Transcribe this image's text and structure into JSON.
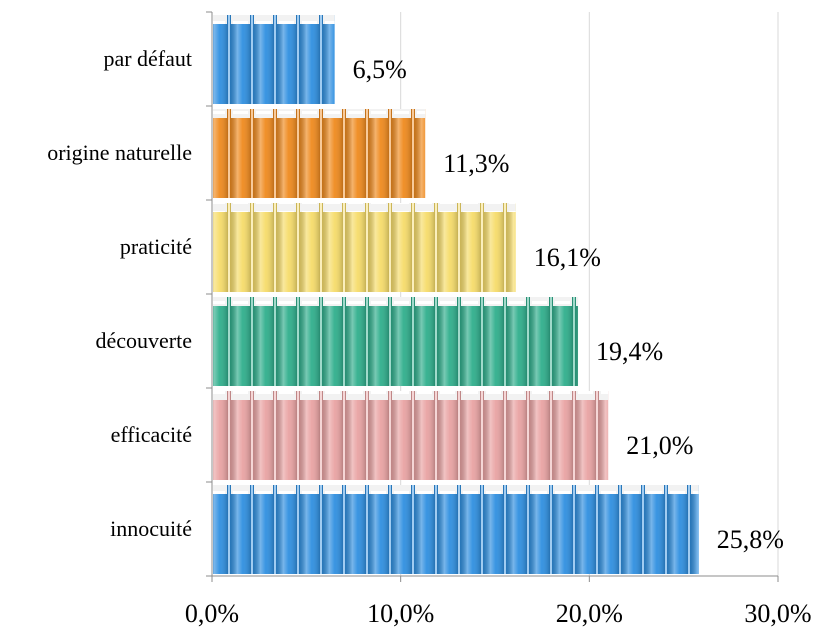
{
  "chart_data": {
    "type": "bar",
    "orientation": "horizontal",
    "categories": [
      "par défaut",
      "origine naturelle",
      "praticité",
      "découverte",
      "efficacité",
      "innocuité"
    ],
    "values": [
      6.5,
      11.3,
      16.1,
      19.4,
      21.0,
      25.8
    ],
    "value_labels": [
      "6,5%",
      "11,3%",
      "16,1%",
      "19,4%",
      "21,0%",
      "25,8%"
    ],
    "colors": [
      "#2f8fe0",
      "#ef8a1e",
      "#f6dc6a",
      "#2fae8c",
      "#e9a3a3",
      "#2f8fe0"
    ],
    "xlim": [
      0,
      30
    ],
    "xticks": [
      0,
      10,
      20,
      30
    ],
    "xtick_labels": [
      "0,0%",
      "10,0%",
      "20,0%",
      "30,0%"
    ],
    "grid": true,
    "title": "",
    "xlabel": "",
    "ylabel": ""
  }
}
